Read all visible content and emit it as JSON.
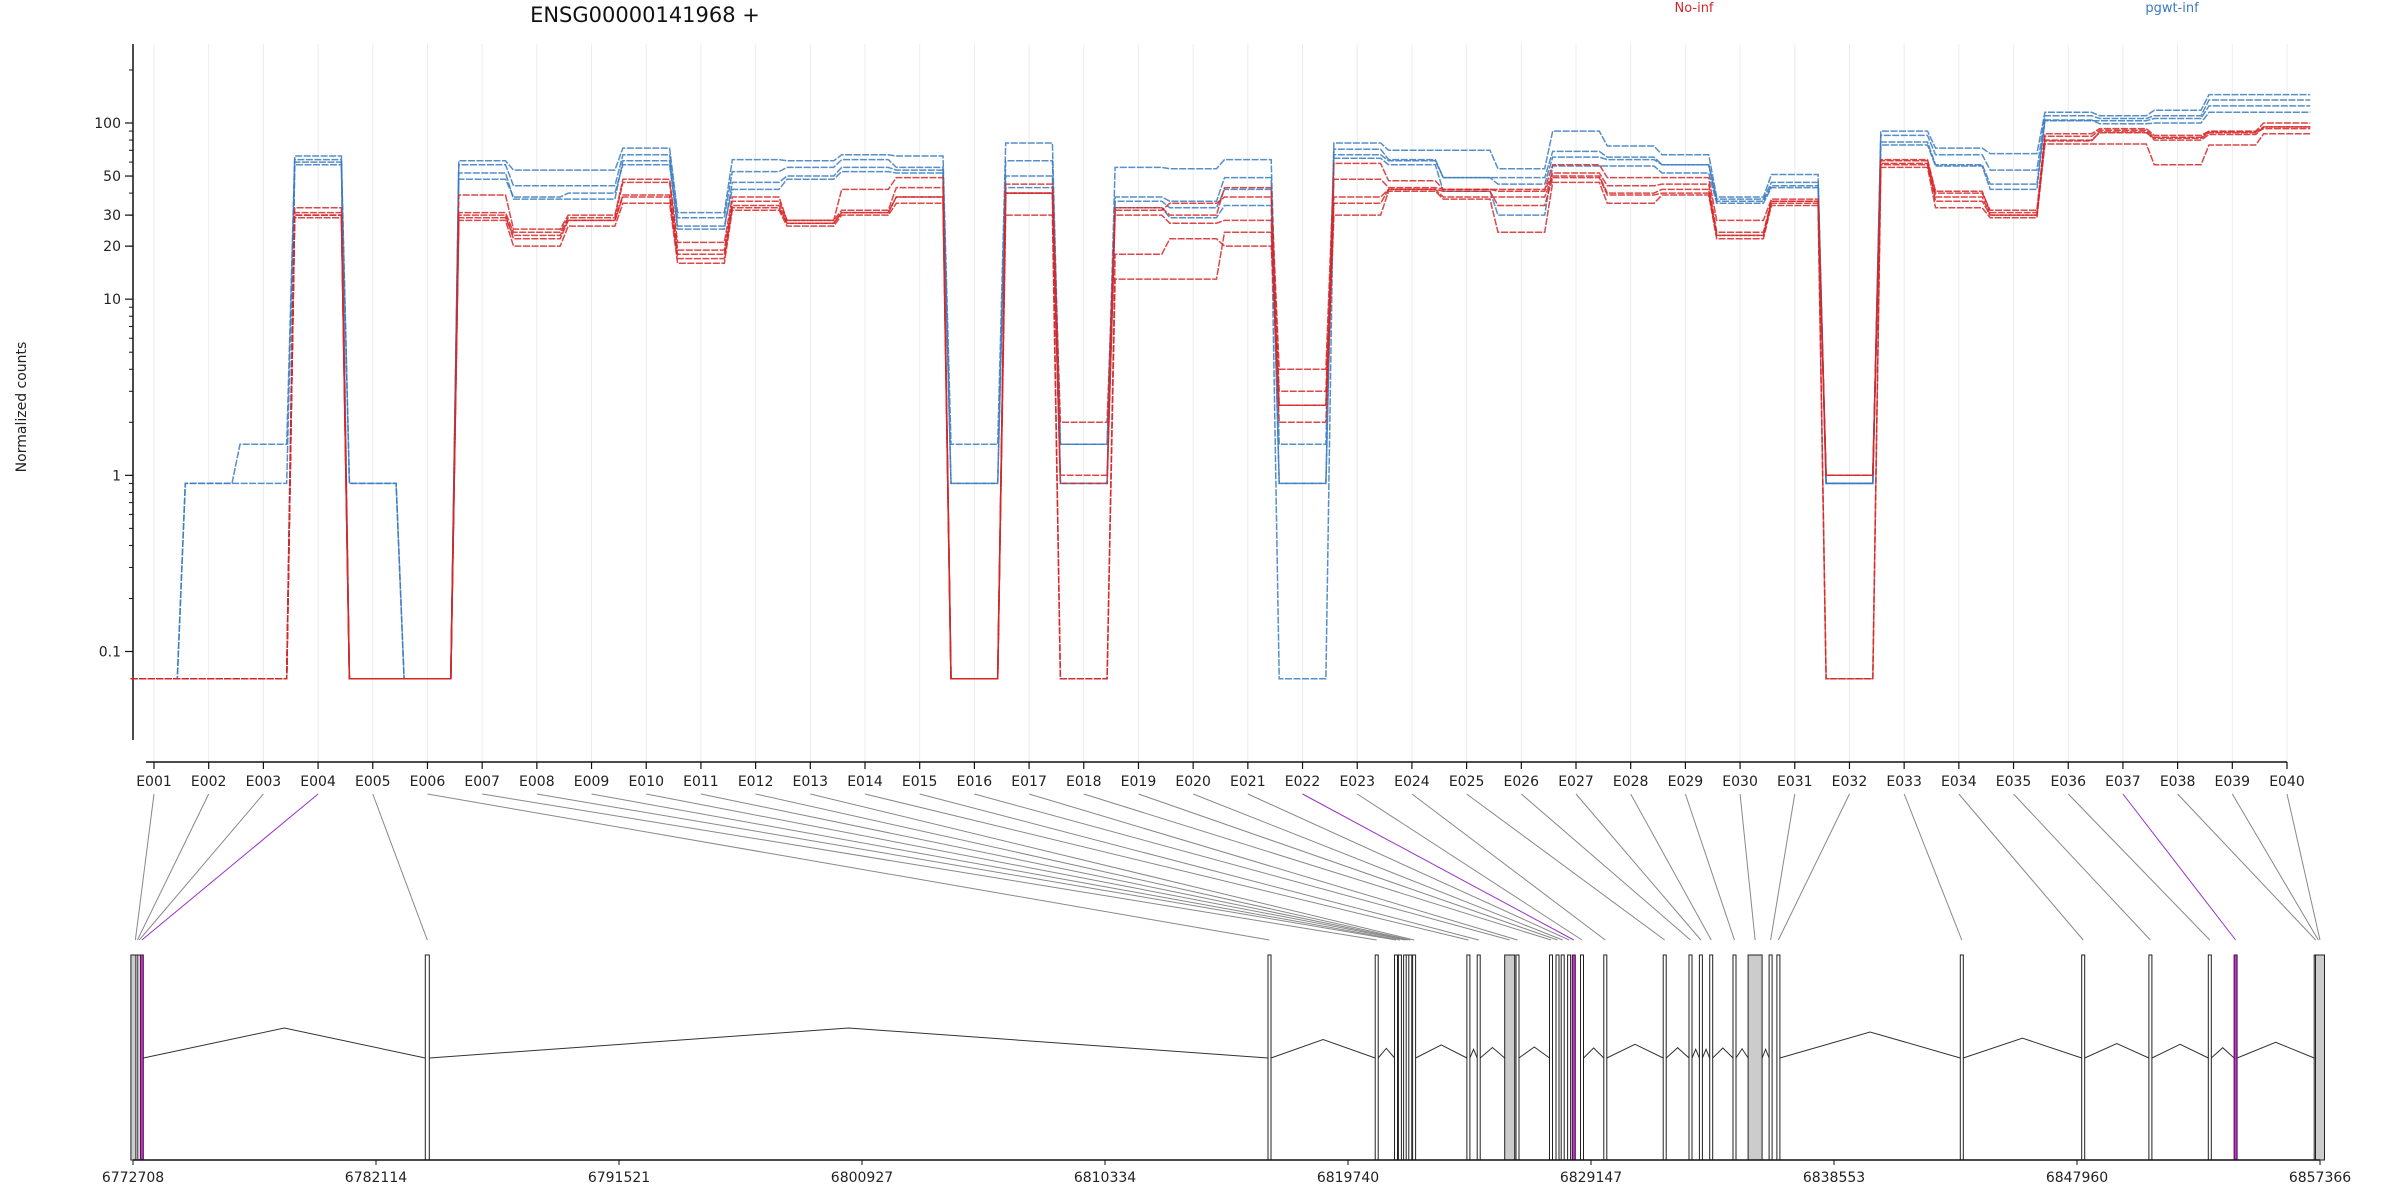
{
  "chart_data": {
    "type": "line",
    "title": "ENSG00000141968 +",
    "ylabel": "Normalized counts",
    "y_scale": "log",
    "y_ticks": [
      0.1,
      1,
      10,
      20,
      30,
      50,
      100
    ],
    "grid": "vertical",
    "legend": [
      {
        "name": "No-inf",
        "color": "#d62728"
      },
      {
        "name": "pgwt-inf",
        "color": "#3a7bbf"
      }
    ],
    "categories": [
      "E001",
      "E002",
      "E003",
      "E004",
      "E005",
      "E006",
      "E007",
      "E008",
      "E009",
      "E010",
      "E011",
      "E012",
      "E013",
      "E014",
      "E015",
      "E016",
      "E017",
      "E018",
      "E019",
      "E020",
      "E021",
      "E022",
      "E023",
      "E024",
      "E025",
      "E026",
      "E027",
      "E028",
      "E029",
      "E030",
      "E031",
      "E032",
      "E033",
      "E034",
      "E035",
      "E036",
      "E037",
      "E038",
      "E039",
      "E040"
    ],
    "series": [
      {
        "group": "pgwt-inf",
        "color": "#3a7bbf",
        "values": [
          0.07,
          0.9,
          0.9,
          65,
          0.9,
          0.07,
          61,
          54,
          54,
          72,
          31,
          62,
          61,
          66,
          65,
          1.5,
          77,
          1.5,
          56,
          55,
          62,
          1.5,
          77,
          70,
          70,
          55,
          90,
          74,
          66,
          38,
          51,
          0.9,
          90,
          72,
          67,
          115,
          110,
          118,
          145,
          145
        ]
      },
      {
        "group": "pgwt-inf",
        "color": "#3a7bbf",
        "values": [
          0.07,
          0.9,
          1.5,
          62,
          0.07,
          0.07,
          58,
          44,
          44,
          66,
          29,
          53,
          56,
          62,
          56,
          0.9,
          61,
          1.5,
          38,
          36,
          49,
          0.9,
          71,
          62,
          49,
          49,
          69,
          64,
          58,
          37,
          46,
          0.9,
          85,
          66,
          54,
          110,
          106,
          110,
          135,
          135
        ]
      },
      {
        "group": "pgwt-inf",
        "color": "#3a7bbf",
        "values": [
          0.07,
          0.07,
          0.07,
          58,
          0.9,
          0.07,
          52,
          37,
          37,
          61,
          25,
          46,
          50,
          56,
          54,
          0.9,
          50,
          0.9,
          36,
          33,
          42,
          0.9,
          66,
          61,
          49,
          45,
          64,
          62,
          58,
          36,
          44,
          0.9,
          78,
          58,
          45,
          103,
          103,
          106,
          125,
          125
        ]
      },
      {
        "group": "pgwt-inf",
        "color": "#3a7bbf",
        "values": [
          0.07,
          0.07,
          0.07,
          60,
          0.07,
          0.07,
          48,
          38,
          40,
          58,
          26,
          42,
          48,
          53,
          52,
          0.07,
          43,
          0.9,
          33,
          29,
          34,
          0.07,
          63,
          58,
          41,
          30,
          57,
          57,
          52,
          35,
          43,
          0.9,
          75,
          57,
          42,
          104,
          99,
          100,
          115,
          115
        ]
      },
      {
        "group": "No-inf",
        "color": "#d62728",
        "values": [
          0.07,
          0.07,
          0.07,
          33,
          0.07,
          0.07,
          39,
          25,
          30,
          48,
          21,
          38,
          28,
          42,
          49,
          0.07,
          45,
          2.0,
          33,
          30,
          43,
          4.0,
          59,
          47,
          42,
          42,
          58,
          49,
          49,
          28,
          37,
          1.0,
          62,
          41,
          31,
          87,
          93,
          85,
          90,
          100
        ]
      },
      {
        "group": "No-inf",
        "color": "#d62728",
        "values": [
          0.07,
          0.07,
          0.07,
          31,
          0.07,
          0.07,
          31,
          24,
          29,
          46,
          19,
          36,
          28,
          32,
          43,
          0.07,
          40,
          1.0,
          32,
          35,
          38,
          3.0,
          48,
          43,
          42,
          41,
          52,
          44,
          45,
          24,
          36,
          1.0,
          61,
          40,
          32,
          84,
          91,
          83,
          89,
          95
        ]
      },
      {
        "group": "No-inf",
        "color": "#d62728",
        "values": [
          0.07,
          0.07,
          0.07,
          30,
          0.07,
          0.07,
          29,
          23,
          28,
          39,
          17,
          34,
          27,
          31,
          38,
          0.07,
          40,
          0.9,
          30,
          27,
          28,
          2.5,
          38,
          42,
          41,
          34,
          49,
          39,
          40,
          23,
          35,
          1.0,
          59,
          36,
          30,
          79,
          89,
          80,
          86,
          95
        ]
      },
      {
        "group": "No-inf",
        "color": "#d62728",
        "values": [
          0.07,
          0.07,
          0.07,
          29,
          0.07,
          0.07,
          28,
          20,
          26,
          35,
          16,
          32,
          26,
          30,
          35,
          0.07,
          30,
          0.07,
          13,
          13,
          24,
          2.0,
          30,
          41,
          37,
          24,
          46,
          35,
          39,
          22,
          34,
          0.07,
          56,
          33,
          29,
          76,
          76,
          58,
          75,
          87
        ]
      },
      {
        "group": "No-inf",
        "color": "#d62728",
        "values": [
          0.07,
          0.07,
          0.07,
          30,
          0.07,
          0.07,
          30,
          22,
          28,
          38,
          18,
          33,
          27,
          31,
          38,
          0.07,
          40,
          0.07,
          18,
          22,
          20,
          2.5,
          35,
          42,
          38,
          38,
          50,
          40,
          42,
          23,
          36,
          0.07,
          58,
          38,
          30,
          80,
          88,
          82,
          88,
          93
        ]
      }
    ],
    "genome_axis": {
      "ticks": [
        "6772708",
        "6782114",
        "6791521",
        "6800927",
        "6810334",
        "6819740",
        "6829147",
        "6838553",
        "6847960",
        "6857366"
      ],
      "range": [
        6772708,
        6857366
      ],
      "exon_positions": [
        6772800,
        6772880,
        6772950,
        6773050,
        6784100,
        6816700,
        6820850,
        6821600,
        6821750,
        6821950,
        6822050,
        6822150,
        6822300,
        6824400,
        6824800,
        6826000,
        6826300,
        6827600,
        6827850,
        6828050,
        6828300,
        6828480,
        6828800,
        6829700,
        6832000,
        6833000,
        6833400,
        6833800,
        6834700,
        6835500,
        6836100,
        6836400,
        6843500,
        6848200,
        6850800,
        6853100,
        6854100,
        6857200,
        6857300,
        6857366
      ],
      "highlighted_exons": [
        "E004",
        "E022",
        "E037"
      ],
      "highlight_color": "#e022e0"
    }
  }
}
